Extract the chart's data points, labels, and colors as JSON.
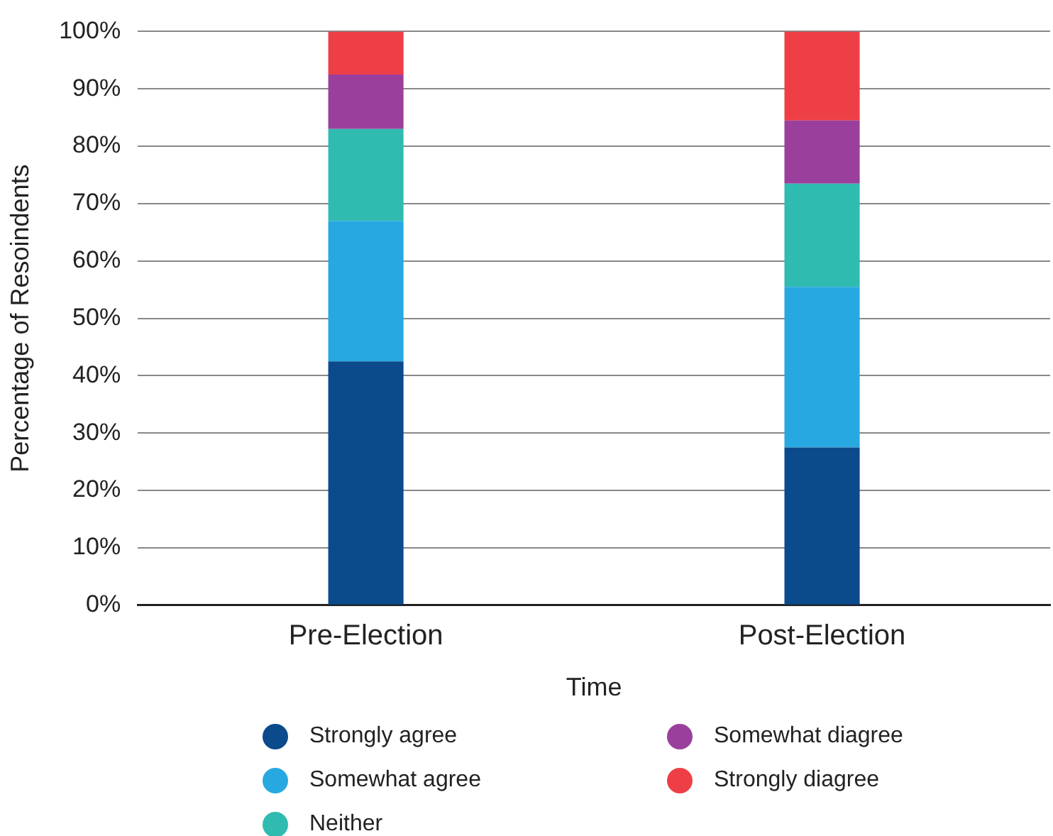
{
  "chart_data": {
    "type": "bar",
    "stacked": true,
    "xlabel": "Time",
    "ylabel": "Percentage of Resoindents",
    "categories": [
      "Pre-Election",
      "Post-Election"
    ],
    "series": [
      {
        "name": "Strongly agree",
        "color": "#0b4a8b",
        "values": [
          42.5,
          27.5
        ]
      },
      {
        "name": "Somewhat agree",
        "color": "#27a8e0",
        "values": [
          24.5,
          28
        ]
      },
      {
        "name": "Neither",
        "color": "#2fbbb0",
        "values": [
          16,
          18
        ]
      },
      {
        "name": "Somewhat diagree",
        "color": "#9b3f9c",
        "values": [
          9.5,
          11
        ]
      },
      {
        "name": "Strongly diagree",
        "color": "#ee3f47",
        "values": [
          7.5,
          15.5
        ]
      }
    ],
    "ylim": [
      0,
      100
    ],
    "yticks": [
      {
        "value": 0,
        "label": "0%"
      },
      {
        "value": 10,
        "label": "10%"
      },
      {
        "value": 20,
        "label": "20%"
      },
      {
        "value": 30,
        "label": "30%"
      },
      {
        "value": 40,
        "label": "40%"
      },
      {
        "value": 50,
        "label": "50%"
      },
      {
        "value": 60,
        "label": "60%"
      },
      {
        "value": 70,
        "label": "70%"
      },
      {
        "value": 80,
        "label": "80%"
      },
      {
        "value": 90,
        "label": "90%"
      },
      {
        "value": 100,
        "label": "100%"
      }
    ],
    "grid": "y",
    "legend": "bottom"
  }
}
